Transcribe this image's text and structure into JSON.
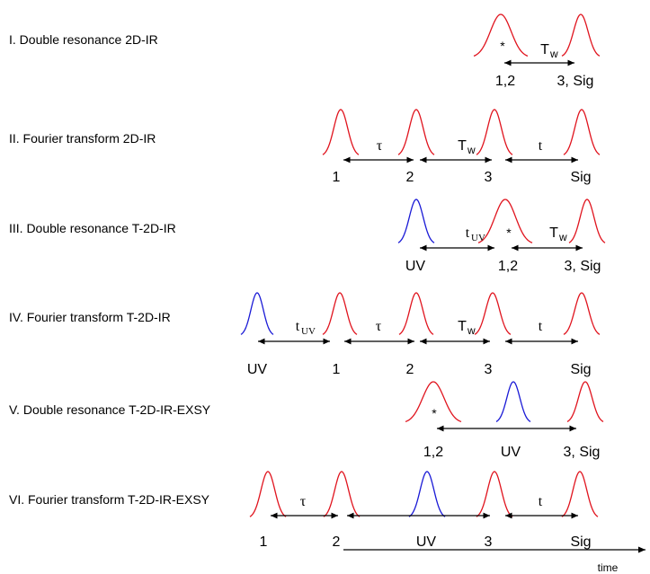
{
  "colors": {
    "ir_pulse": "#e0141e",
    "uv_pulse": "#1a1ad6",
    "arrow": "#000000",
    "text": "#000000"
  },
  "rows": [
    {
      "title": "I. Double resonance 2D-IR",
      "pulses": [
        {
          "kind": "ir",
          "shape": "broad"
        },
        {
          "kind": "ir",
          "shape": "narrow"
        }
      ],
      "star": "*",
      "intervals": [
        {
          "symbol": "T",
          "sub": "w"
        }
      ],
      "labels": [
        "1,2",
        "3, Sig"
      ]
    },
    {
      "title": "II. Fourier transform 2D-IR",
      "pulses": [
        {
          "kind": "ir",
          "shape": "narrow"
        },
        {
          "kind": "ir",
          "shape": "narrow"
        },
        {
          "kind": "ir",
          "shape": "narrow"
        },
        {
          "kind": "ir",
          "shape": "narrow"
        }
      ],
      "intervals": [
        {
          "symbol": "τ",
          "sub": ""
        },
        {
          "symbol": "T",
          "sub": "w"
        },
        {
          "symbol": "t",
          "sub": ""
        }
      ],
      "labels": [
        "1",
        "2",
        "3",
        "Sig"
      ]
    },
    {
      "title": "III. Double resonance T-2D-IR",
      "pulses": [
        {
          "kind": "uv",
          "shape": "narrow"
        },
        {
          "kind": "ir",
          "shape": "broad"
        },
        {
          "kind": "ir",
          "shape": "narrow"
        }
      ],
      "star": "*",
      "intervals": [
        {
          "symbol": "t",
          "sub": "UV"
        },
        {
          "symbol": "T",
          "sub": "w"
        }
      ],
      "labels": [
        "UV",
        "1,2",
        "3, Sig"
      ]
    },
    {
      "title": "IV. Fourier transform T-2D-IR",
      "pulses": [
        {
          "kind": "uv",
          "shape": "narrow"
        },
        {
          "kind": "ir",
          "shape": "narrow"
        },
        {
          "kind": "ir",
          "shape": "narrow"
        },
        {
          "kind": "ir",
          "shape": "narrow"
        },
        {
          "kind": "ir",
          "shape": "narrow"
        }
      ],
      "intervals": [
        {
          "symbol": "t",
          "sub": "UV"
        },
        {
          "symbol": "τ",
          "sub": ""
        },
        {
          "symbol": "T",
          "sub": "w"
        },
        {
          "symbol": "t",
          "sub": ""
        }
      ],
      "labels": [
        "UV",
        "1",
        "2",
        "3",
        "Sig"
      ]
    },
    {
      "title": "V. Double resonance T-2D-IR-EXSY",
      "pulses": [
        {
          "kind": "ir",
          "shape": "broad"
        },
        {
          "kind": "uv",
          "shape": "narrow"
        },
        {
          "kind": "ir",
          "shape": "narrow"
        }
      ],
      "star": "*",
      "intervals": [],
      "labels": [
        "1,2",
        "UV",
        "3, Sig"
      ]
    },
    {
      "title": "VI. Fourier transform T-2D-IR-EXSY",
      "pulses": [
        {
          "kind": "ir",
          "shape": "narrow"
        },
        {
          "kind": "ir",
          "shape": "narrow"
        },
        {
          "kind": "uv",
          "shape": "narrow"
        },
        {
          "kind": "ir",
          "shape": "narrow"
        },
        {
          "kind": "ir",
          "shape": "narrow"
        }
      ],
      "intervals": [
        {
          "symbol": "τ",
          "sub": ""
        },
        {
          "symbol": "",
          "sub": ""
        },
        {
          "symbol": "t",
          "sub": ""
        }
      ],
      "labels": [
        "1",
        "2",
        "UV",
        "3",
        "Sig"
      ]
    }
  ],
  "time_axis": {
    "label": "time"
  }
}
